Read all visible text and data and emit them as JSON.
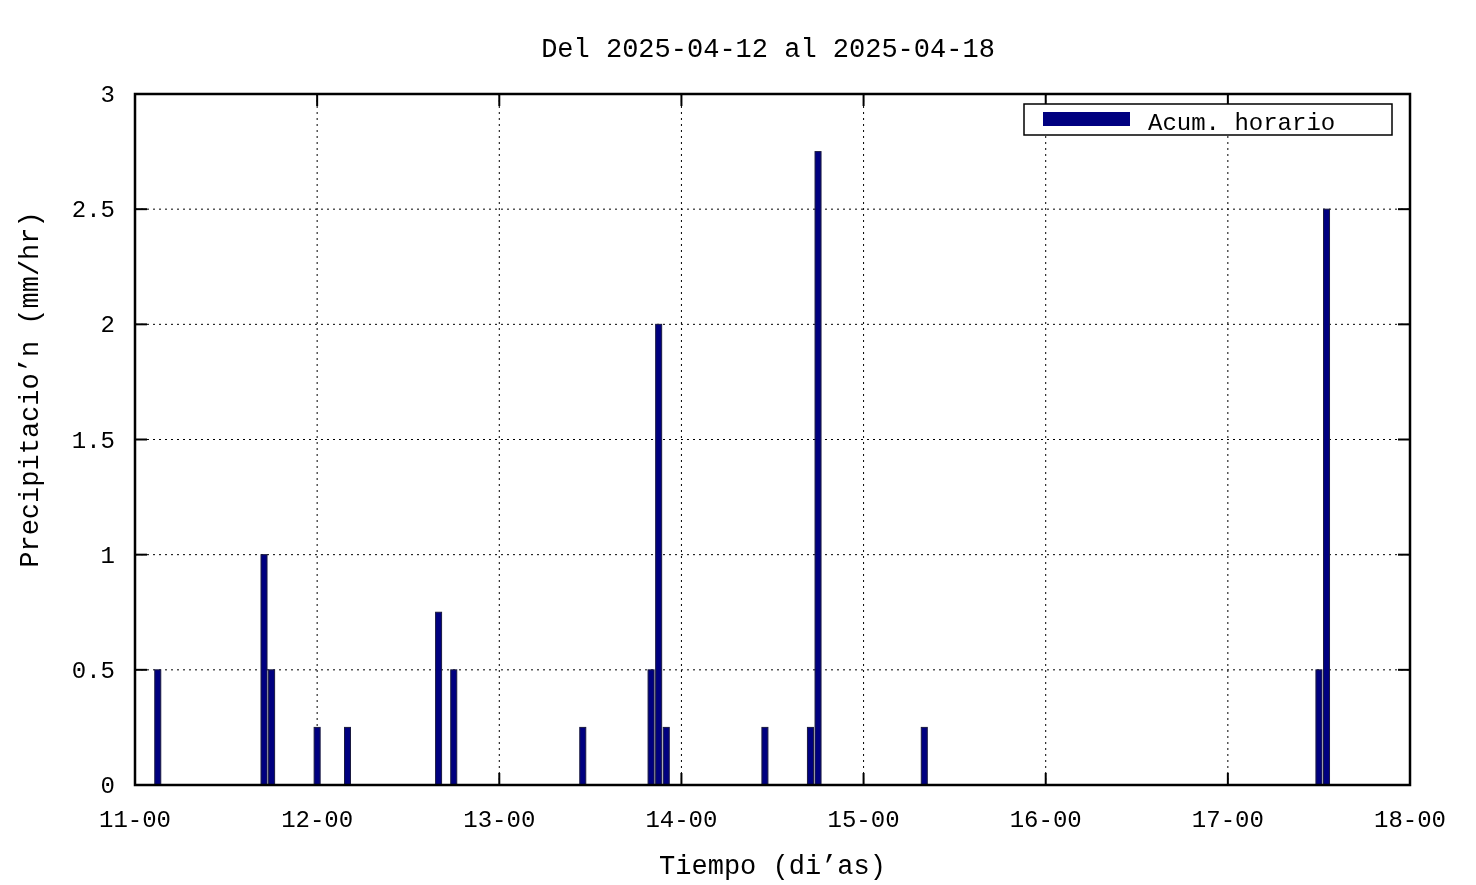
{
  "chart_data": {
    "type": "bar",
    "title": "Del 2025-04-12 al 2025-04-18",
    "xlabel": "Tiempo (di’as)",
    "ylabel": "Precipitacio’n (mm/hr)",
    "x": [
      "2025-04-11T03:00",
      "2025-04-11T17:00",
      "2025-04-11T18:00",
      "2025-04-12T00:00",
      "2025-04-12T04:00",
      "2025-04-12T16:00",
      "2025-04-12T18:00",
      "2025-04-13T11:00",
      "2025-04-13T20:00",
      "2025-04-13T21:00",
      "2025-04-13T22:00",
      "2025-04-14T11:00",
      "2025-04-14T17:00",
      "2025-04-14T18:00",
      "2025-04-15T08:00",
      "2025-04-17T12:00",
      "2025-04-17T13:00"
    ],
    "series": [
      {
        "name": "Acum. horario",
        "color": "#000080",
        "values": [
          0.5,
          1,
          0.5,
          0.25,
          0.25,
          0.75,
          0.5,
          0.25,
          0.5,
          2,
          0.25,
          0.25,
          0.25,
          2.75,
          0.25,
          0.5,
          2.5
        ]
      }
    ],
    "xlim": [
      "2025-04-11T00:00",
      "2025-04-18T00:00"
    ],
    "xticks": [
      {
        "value": "2025-04-11T00:00",
        "label": "11-00"
      },
      {
        "value": "2025-04-12T00:00",
        "label": "12-00"
      },
      {
        "value": "2025-04-13T00:00",
        "label": "13-00"
      },
      {
        "value": "2025-04-14T00:00",
        "label": "14-00"
      },
      {
        "value": "2025-04-15T00:00",
        "label": "15-00"
      },
      {
        "value": "2025-04-16T00:00",
        "label": "16-00"
      },
      {
        "value": "2025-04-17T00:00",
        "label": "17-00"
      },
      {
        "value": "2025-04-18T00:00",
        "label": "18-00"
      }
    ],
    "ylim": [
      0,
      3
    ],
    "yticks": [
      0,
      0.5,
      1,
      1.5,
      2,
      2.5,
      3
    ],
    "grid": true,
    "legend": "top right"
  }
}
